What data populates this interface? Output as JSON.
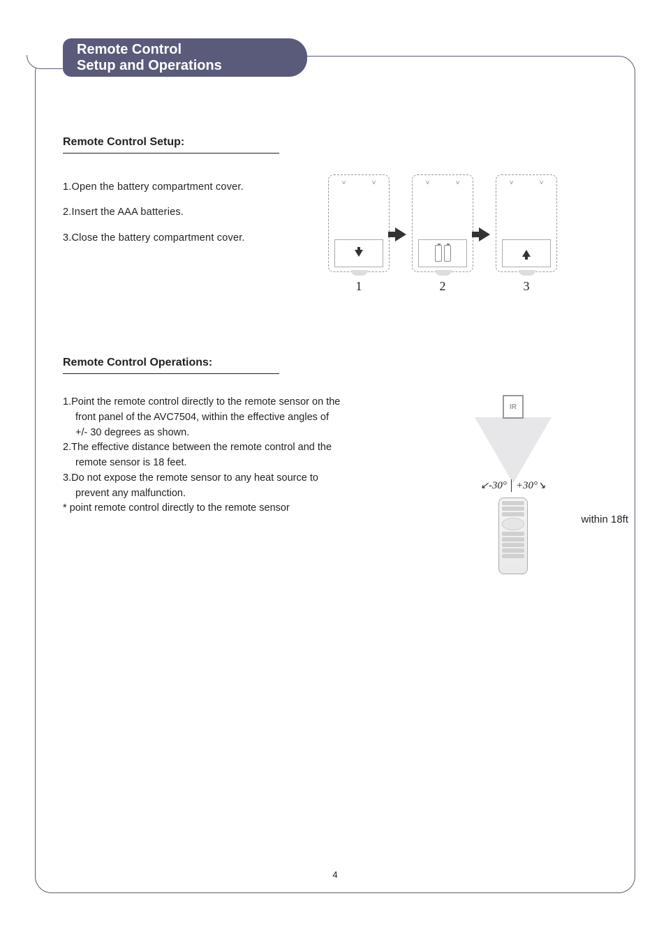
{
  "header": {
    "title_line1": "Remote Control",
    "title_line2": "Setup and Operations"
  },
  "setup": {
    "heading": "Remote Control Setup:",
    "steps": {
      "s1": "1.Open the battery compartment cover.",
      "s2": "2.Insert the AAA batteries.",
      "s3": "3.Close the battery compartment cover."
    },
    "diagram_labels": {
      "d1": "1",
      "d2": "2",
      "d3": "3"
    }
  },
  "operations": {
    "heading": "Remote Control Operations:",
    "lines": {
      "l1a": "1.Point the remote control directly to the remote sensor on the",
      "l1b": "front panel of the AVC7504, within the effective angles of",
      "l1c": "+/- 30 degrees as shown.",
      "l2a": "2.The effective distance between the remote control and the",
      "l2b": "remote sensor is 18 feet.",
      "l3a": "3.Do not expose the remote sensor to any heat source to",
      "l3b": "prevent any malfunction.",
      "note": "* point remote control directly to the remote sensor"
    },
    "figure": {
      "ir_label": "IR",
      "angle_left": "-30°",
      "angle_right": "+30°",
      "distance": "within 18ft",
      "angle_left_tick": "↙",
      "angle_right_tick": "↘"
    }
  },
  "page_number": "4",
  "colors": {
    "accent": "#5a5a7a",
    "text": "#231f20",
    "cone": "rgba(120,120,140,0.18)"
  }
}
